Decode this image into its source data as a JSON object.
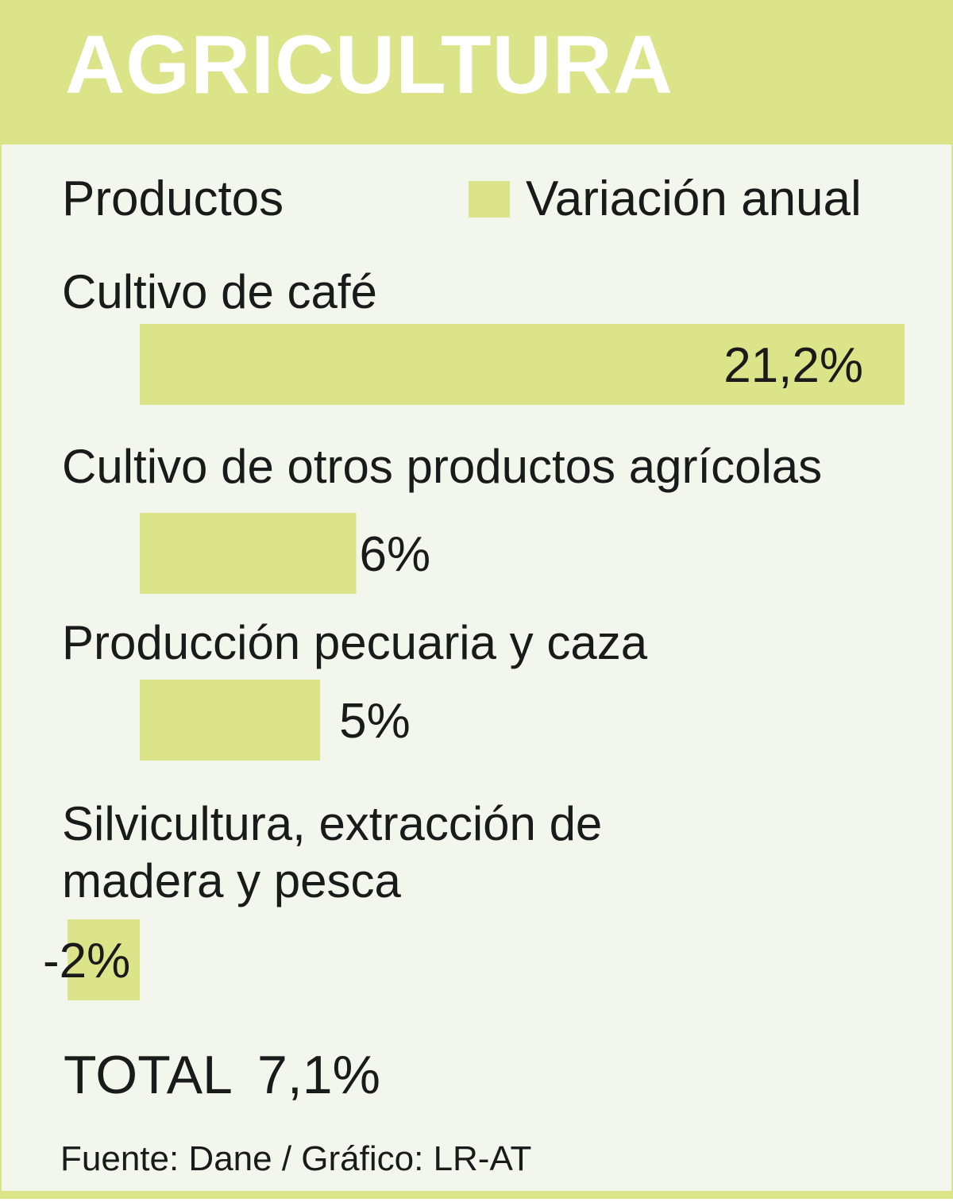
{
  "title": "AGRICULTURA",
  "column_header": "Productos",
  "legend_label": "Variación anual",
  "colors": {
    "bar": "#dce48a",
    "header": "#dce48a",
    "panel": "#f2f6ec",
    "text": "#1a1a1a"
  },
  "chart_data": {
    "type": "bar",
    "orientation": "horizontal",
    "categories": [
      "Cultivo de café",
      "Cultivo de otros productos agrícolas",
      "Producción pecuaria y caza",
      "Silvicultura, extracción de madera y pesca"
    ],
    "series": [
      {
        "name": "Variación anual",
        "values": [
          21.2,
          6,
          5,
          -2
        ]
      }
    ],
    "data_labels": [
      "21,2%",
      "6%",
      "5%",
      "-2%"
    ],
    "unit": "%"
  },
  "total_label": "TOTAL",
  "total_value": "7,1%",
  "source": "Fuente: Dane / Gráfico: LR-AT"
}
